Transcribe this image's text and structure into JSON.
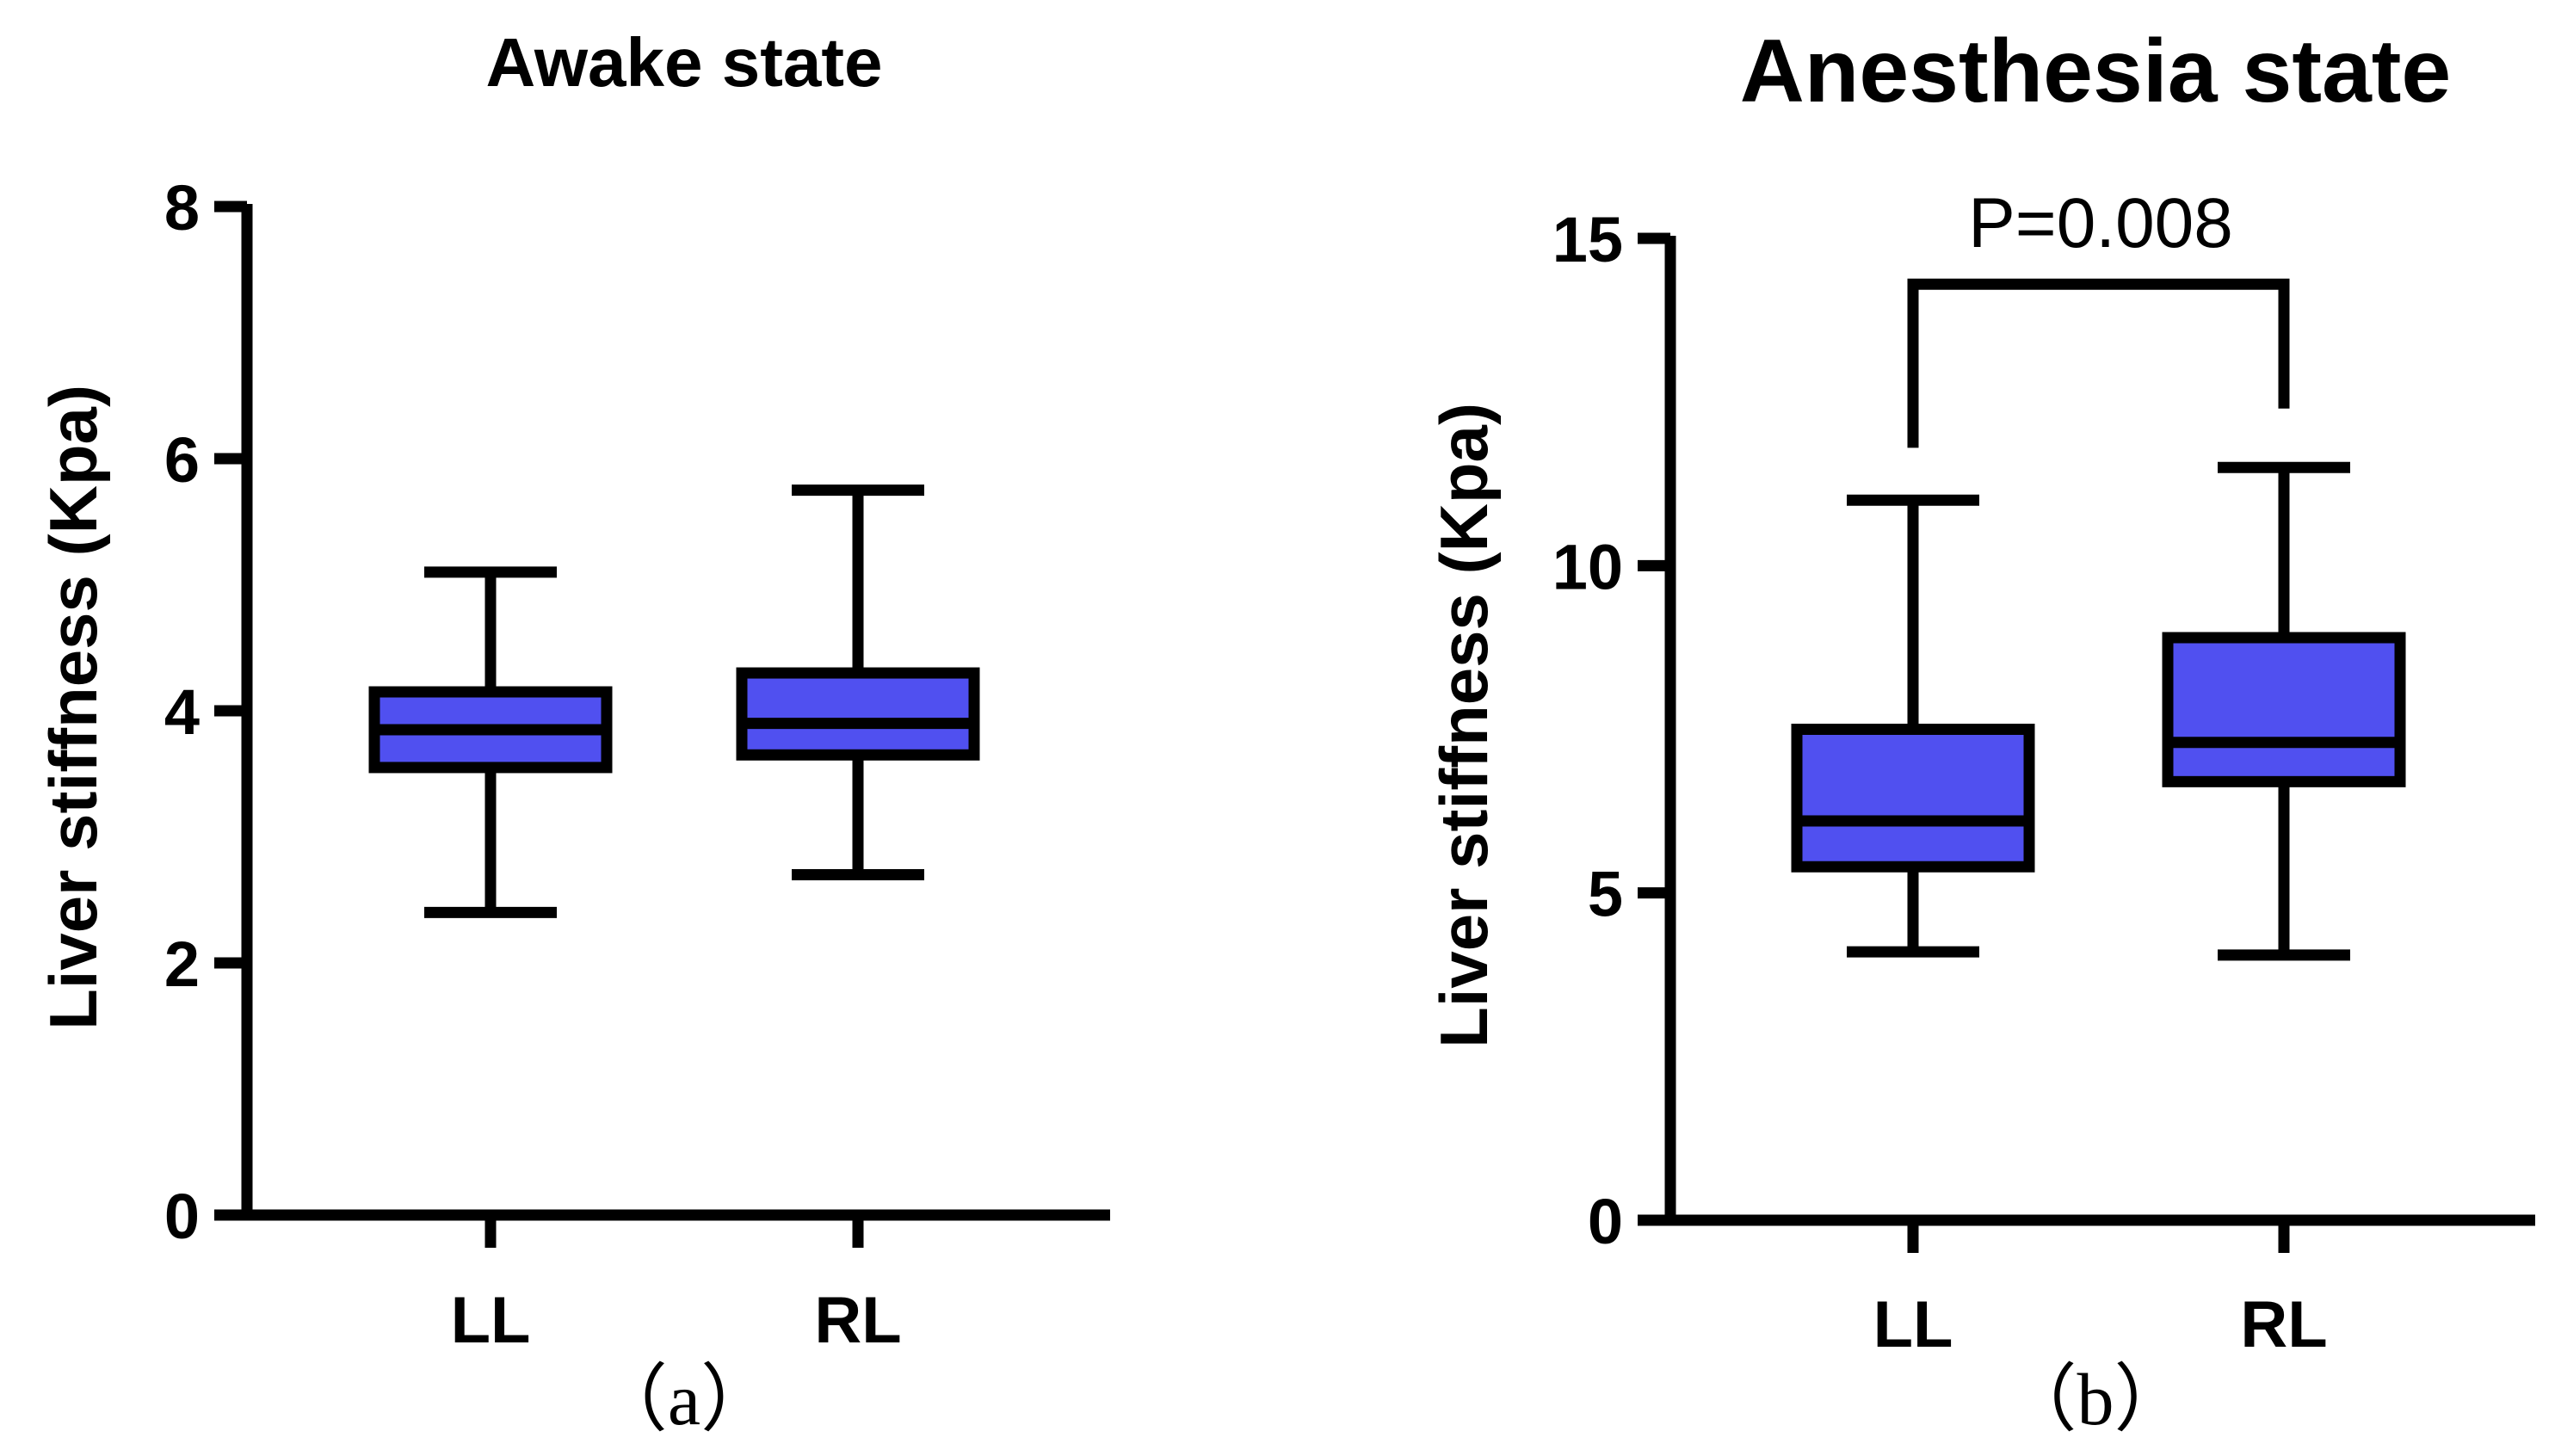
{
  "figure": {
    "background": "#ffffff",
    "box_fill": "#5050f0",
    "stroke_color": "#000000"
  },
  "chart_data": [
    {
      "type": "box",
      "title": "Awake state",
      "ylabel": "Liver stiffness (Kpa)",
      "xlabel": "",
      "panel_label": "（a）",
      "ylim": [
        0,
        8
      ],
      "yticks": [
        0,
        2,
        4,
        6,
        8
      ],
      "categories": [
        "LL",
        "RL"
      ],
      "series": [
        {
          "name": "LL",
          "min": 2.4,
          "q1": 3.55,
          "median": 3.85,
          "q3": 4.15,
          "max": 5.1
        },
        {
          "name": "RL",
          "min": 2.7,
          "q1": 3.65,
          "median": 3.9,
          "q3": 4.3,
          "max": 5.75
        }
      ]
    },
    {
      "type": "box",
      "title": "Anesthesia state",
      "ylabel": "Liver stiffness (Kpa)",
      "xlabel": "",
      "panel_label": "（b）",
      "ylim": [
        0,
        15
      ],
      "yticks": [
        0,
        5,
        10,
        15
      ],
      "categories": [
        "LL",
        "RL"
      ],
      "series": [
        {
          "name": "LL",
          "min": 4.1,
          "q1": 5.4,
          "median": 6.1,
          "q3": 7.5,
          "max": 11.0
        },
        {
          "name": "RL",
          "min": 4.05,
          "q1": 6.7,
          "median": 7.3,
          "q3": 8.9,
          "max": 11.5
        }
      ],
      "annotation": {
        "text": "P=0.008",
        "left_end": 11.8,
        "right_end": 12.4,
        "bar_level": 14.3
      }
    }
  ]
}
